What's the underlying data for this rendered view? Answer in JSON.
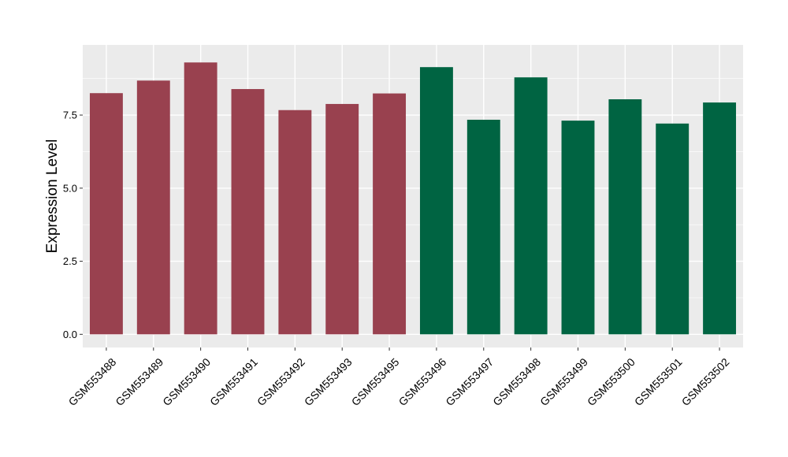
{
  "chart_data": {
    "type": "bar",
    "title": "",
    "xlabel": "",
    "ylabel": "Expression Level",
    "ylim": [
      -0.45,
      9.9
    ],
    "yticks": [
      0.0,
      2.5,
      5.0,
      7.5
    ],
    "ytick_labels": [
      "0.0",
      "2.5",
      "5.0",
      "7.5"
    ],
    "grid": true,
    "legend": "none",
    "categories": [
      "GSM553488",
      "GSM553489",
      "GSM553490",
      "GSM553491",
      "GSM553492",
      "GSM553493",
      "GSM553495",
      "GSM553496",
      "GSM553497",
      "GSM553498",
      "GSM553499",
      "GSM553500",
      "GSM553501",
      "GSM553502"
    ],
    "values": [
      8.25,
      8.68,
      9.3,
      8.39,
      7.67,
      7.88,
      8.24,
      9.14,
      7.34,
      8.79,
      7.31,
      8.04,
      7.21,
      7.93
    ],
    "groups": [
      1,
      1,
      1,
      1,
      1,
      1,
      1,
      2,
      2,
      2,
      2,
      2,
      2,
      2
    ],
    "colors": {
      "group1": "#99414f",
      "group2": "#006442",
      "panel_background": "#ebebeb",
      "grid": "#ffffff"
    }
  }
}
